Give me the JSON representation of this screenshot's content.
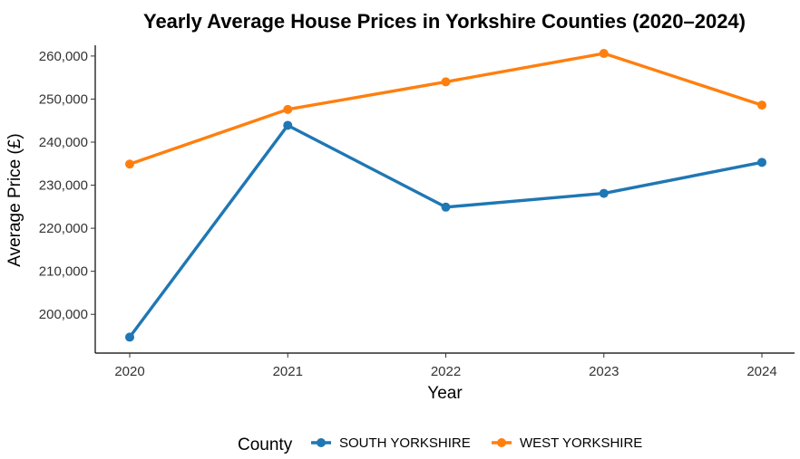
{
  "chart_data": {
    "type": "line",
    "title": "Yearly Average House Prices in Yorkshire Counties (2020–2024)",
    "xlabel": "Year",
    "ylabel": "Average Price (£)",
    "categories": [
      "2020",
      "2021",
      "2022",
      "2023",
      "2024"
    ],
    "x_tick_labels": [
      "2020",
      "2021",
      "2022",
      "2023",
      "2024"
    ],
    "y_tick_values": [
      200000,
      210000,
      220000,
      230000,
      240000,
      250000,
      260000
    ],
    "y_tick_labels": [
      "200,000",
      "210,000",
      "220,000",
      "230,000",
      "240,000",
      "250,000",
      "260,000"
    ],
    "ylim": [
      191000,
      262500
    ],
    "grid": false,
    "legend": {
      "title": "County",
      "position": "bottom"
    },
    "series": [
      {
        "name": "SOUTH YORKSHIRE",
        "color": "#1f77b4",
        "values": [
          194700,
          243900,
          224900,
          228100,
          235300
        ]
      },
      {
        "name": "WEST YORKSHIRE",
        "color": "#ff7f0e",
        "values": [
          234900,
          247600,
          254000,
          260600,
          248600
        ]
      }
    ]
  }
}
